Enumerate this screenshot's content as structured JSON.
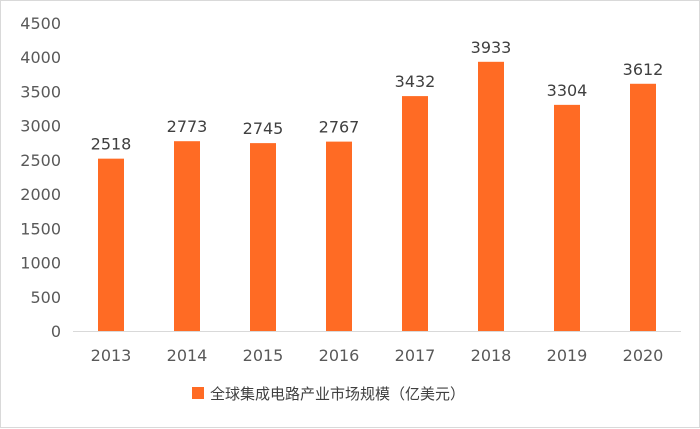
{
  "chart_data": {
    "type": "bar",
    "categories": [
      "2013",
      "2014",
      "2015",
      "2016",
      "2017",
      "2018",
      "2019",
      "2020"
    ],
    "series": [
      {
        "name": "全球集成电路产业市场规模（亿美元）",
        "values": [
          2518,
          2773,
          2745,
          2767,
          3432,
          3933,
          3304,
          3612
        ]
      }
    ],
    "ylim": [
      0,
      4500
    ],
    "yticks": [
      0,
      500,
      1000,
      1500,
      2000,
      2500,
      3000,
      3500,
      4000,
      4500
    ],
    "grid": false,
    "legend": "bottom",
    "colors": {
      "bar": "#ff6b24",
      "axis": "#d9d9d9"
    }
  }
}
